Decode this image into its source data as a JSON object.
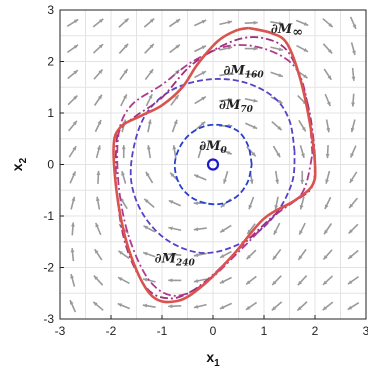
{
  "chart_data": {
    "type": "line",
    "xlabel": "x",
    "xlabel_sub": "1",
    "ylabel": "x",
    "ylabel_sub": "2",
    "xlim": [
      -3,
      3
    ],
    "ylim": [
      -3,
      3
    ],
    "xticks": [
      "-3",
      "-2",
      "-1",
      "0",
      "1",
      "2",
      "3"
    ],
    "yticks": [
      "-3",
      "-2",
      "-1",
      "0",
      "1",
      "2",
      "3"
    ],
    "grid": true,
    "vector_field": true,
    "origin_marker": {
      "x": 0,
      "y": 0,
      "color": "#1a1acc"
    },
    "series": [
      {
        "name": "∂M",
        "sub": "0",
        "style": "dashed",
        "color": "#2a3ecf",
        "points": [
          [
            0.76,
            0
          ],
          [
            0.69,
            0.36
          ],
          [
            0.5,
            0.64
          ],
          [
            0.19,
            0.76
          ],
          [
            -0.14,
            0.75
          ],
          [
            -0.44,
            0.6
          ],
          [
            -0.65,
            0.34
          ],
          [
            -0.75,
            0
          ],
          [
            -0.67,
            -0.36
          ],
          [
            -0.45,
            -0.62
          ],
          [
            -0.15,
            -0.75
          ],
          [
            0.18,
            -0.76
          ],
          [
            0.48,
            -0.61
          ],
          [
            0.68,
            -0.34
          ],
          [
            0.76,
            0
          ]
        ]
      },
      {
        "name": "∂M",
        "sub": "70",
        "style": "dashed",
        "color": "#5a3fc9",
        "points": [
          [
            1.6,
            0.25
          ],
          [
            1.5,
            0.85
          ],
          [
            1.2,
            1.3
          ],
          [
            0.6,
            1.6
          ],
          [
            -0.1,
            1.65
          ],
          [
            -0.8,
            1.45
          ],
          [
            -1.3,
            1.0
          ],
          [
            -1.55,
            0.35
          ],
          [
            -1.6,
            -0.35
          ],
          [
            -1.35,
            -1.0
          ],
          [
            -0.85,
            -1.5
          ],
          [
            -0.15,
            -1.72
          ],
          [
            0.6,
            -1.5
          ],
          [
            1.2,
            -1.0
          ],
          [
            1.55,
            -0.35
          ],
          [
            1.6,
            0.25
          ]
        ]
      },
      {
        "name": "∂M",
        "sub": "160",
        "style": "dashdot",
        "color": "#b03a8f",
        "points": [
          [
            1.95,
            0.2
          ],
          [
            1.85,
            1.2
          ],
          [
            1.6,
            1.9
          ],
          [
            1.0,
            2.25
          ],
          [
            0.3,
            2.3
          ],
          [
            -0.4,
            2.0
          ],
          [
            -1.0,
            1.55
          ],
          [
            -1.6,
            1.15
          ],
          [
            -1.85,
            0.6
          ],
          [
            -1.85,
            -0.4
          ],
          [
            -1.65,
            -1.4
          ],
          [
            -1.25,
            -2.25
          ],
          [
            -0.75,
            -2.55
          ],
          [
            -0.15,
            -2.3
          ],
          [
            0.55,
            -1.65
          ],
          [
            1.2,
            -1.0
          ],
          [
            1.75,
            -0.55
          ],
          [
            1.95,
            0.2
          ]
        ]
      },
      {
        "name": "∂M",
        "sub": "240",
        "style": "dashdot",
        "color": "#a0307c",
        "points": [
          [
            2.0,
            0.0
          ],
          [
            1.98,
            -0.3
          ],
          [
            1.9,
            -0.5
          ],
          [
            1.7,
            -0.65
          ],
          [
            1.3,
            -0.9
          ],
          [
            0.7,
            -1.45
          ],
          [
            0.1,
            -2.05
          ],
          [
            -0.4,
            -2.45
          ],
          [
            -0.85,
            -2.6
          ],
          [
            -1.3,
            -2.4
          ],
          [
            -1.7,
            -1.6
          ],
          [
            -1.88,
            -0.6
          ],
          [
            -1.9,
            0.3
          ],
          [
            -1.82,
            0.68
          ],
          [
            -1.5,
            0.95
          ],
          [
            -1.0,
            1.3
          ],
          [
            -0.4,
            1.95
          ],
          [
            0.4,
            2.4
          ],
          [
            1.0,
            2.45
          ],
          [
            1.5,
            2.15
          ],
          [
            1.85,
            1.2
          ],
          [
            1.98,
            0.4
          ],
          [
            2.0,
            0.0
          ]
        ]
      },
      {
        "name": "∂M",
        "sub": "∞",
        "style": "solid",
        "color": "#d9534f",
        "points": [
          [
            0.7,
            2.65
          ],
          [
            1.15,
            2.55
          ],
          [
            1.45,
            2.35
          ],
          [
            1.7,
            1.7
          ],
          [
            1.9,
            0.8
          ],
          [
            2.0,
            0.0
          ],
          [
            1.95,
            -0.4
          ],
          [
            1.6,
            -0.7
          ],
          [
            1.0,
            -1.05
          ],
          [
            0.4,
            -1.75
          ],
          [
            -0.2,
            -2.35
          ],
          [
            -0.7,
            -2.65
          ],
          [
            -1.2,
            -2.55
          ],
          [
            -1.6,
            -1.8
          ],
          [
            -1.85,
            -0.8
          ],
          [
            -1.95,
            0.3
          ],
          [
            -1.82,
            0.72
          ],
          [
            -1.4,
            0.95
          ],
          [
            -1.0,
            1.15
          ],
          [
            -0.6,
            1.5
          ],
          [
            -0.3,
            1.95
          ],
          [
            0.1,
            2.4
          ],
          [
            0.45,
            2.6
          ],
          [
            0.7,
            2.65
          ]
        ]
      }
    ]
  }
}
